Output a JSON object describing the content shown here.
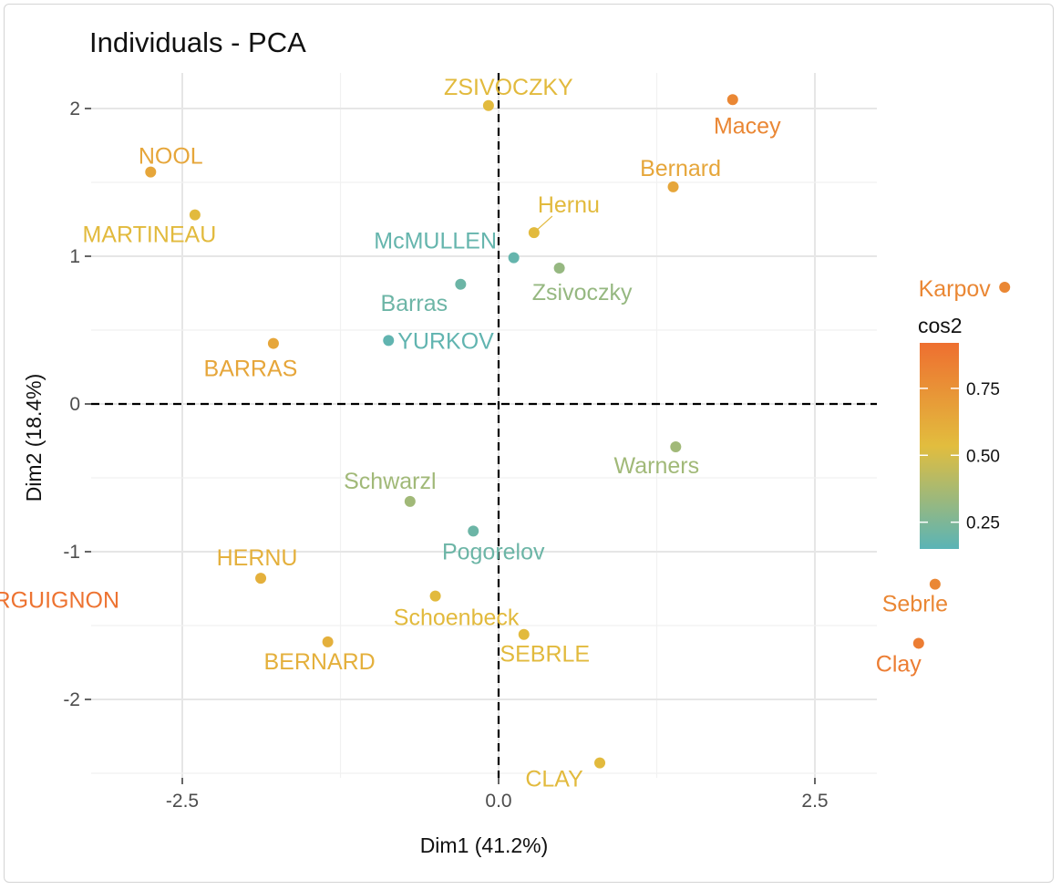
{
  "chart_data": {
    "type": "scatter",
    "title": "Individuals - PCA",
    "xlabel": "Dim1 (41.2%)",
    "ylabel": "Dim2 (18.4%)",
    "xlim": [
      -4.6,
      4.8
    ],
    "ylim": [
      -2.6,
      2.35
    ],
    "x_ticks": [
      -2.5,
      0.0,
      2.5
    ],
    "x_tick_labels": [
      "-2.5",
      "0.0",
      "2.5"
    ],
    "y_ticks": [
      -2,
      -1,
      0,
      1,
      2
    ],
    "y_tick_labels": [
      "-2",
      "-1",
      "0",
      "1",
      "2"
    ],
    "grid": true,
    "reference_lines": {
      "x": 0,
      "y": 0,
      "style": "dashed"
    },
    "color_scale": {
      "name": "cos2",
      "min": 0.15,
      "max": 0.92,
      "ticks": [
        0.25,
        0.5,
        0.75
      ],
      "tick_labels": [
        "0.25",
        "0.50",
        "0.75"
      ],
      "colors": [
        "#5ab4b6",
        "#e2bd3e",
        "#ee6f30"
      ],
      "legend_position": "right"
    },
    "points": [
      {
        "name": "ZSIVOCZKY",
        "x": -0.08,
        "y": 2.02,
        "cos2": 0.55
      },
      {
        "name": "Macey",
        "x": 1.85,
        "y": 2.06,
        "cos2": 0.8
      },
      {
        "name": "NOOL",
        "x": -2.75,
        "y": 1.57,
        "cos2": 0.65
      },
      {
        "name": "Bernard",
        "x": 1.38,
        "y": 1.47,
        "cos2": 0.65
      },
      {
        "name": "MARTINEAU",
        "x": -2.4,
        "y": 1.28,
        "cos2": 0.55
      },
      {
        "name": "Hernu",
        "x": 0.28,
        "y": 1.16,
        "cos2": 0.55
      },
      {
        "name": "McMULLEN",
        "x": 0.12,
        "y": 0.99,
        "cos2": 0.18
      },
      {
        "name": "Zsivoczky",
        "x": 0.48,
        "y": 0.92,
        "cos2": 0.32
      },
      {
        "name": "Karpov",
        "x": 4.0,
        "y": 0.79,
        "cos2": 0.8
      },
      {
        "name": "Barras",
        "x": -0.3,
        "y": 0.81,
        "cos2": 0.2
      },
      {
        "name": "YURKOV",
        "x": -0.87,
        "y": 0.43,
        "cos2": 0.17
      },
      {
        "name": "BARRAS",
        "x": -1.78,
        "y": 0.41,
        "cos2": 0.65
      },
      {
        "name": "Warners",
        "x": 1.4,
        "y": -0.29,
        "cos2": 0.35
      },
      {
        "name": "Schwarzl",
        "x": -0.7,
        "y": -0.66,
        "cos2": 0.35
      },
      {
        "name": "Pogorelov",
        "x": -0.2,
        "y": -0.86,
        "cos2": 0.2
      },
      {
        "name": "HERNU",
        "x": -1.88,
        "y": -1.18,
        "cos2": 0.6
      },
      {
        "name": "BOURGUIGNON",
        "x": -4.45,
        "y": -1.27,
        "cos2": 0.9
      },
      {
        "name": "Sebrle",
        "x": 3.45,
        "y": -1.22,
        "cos2": 0.8
      },
      {
        "name": "Schoenbeck",
        "x": -0.5,
        "y": -1.3,
        "cos2": 0.55
      },
      {
        "name": "SEBRLE",
        "x": 0.2,
        "y": -1.56,
        "cos2": 0.55
      },
      {
        "name": "BERNARD",
        "x": -1.35,
        "y": -1.61,
        "cos2": 0.6
      },
      {
        "name": "Clay",
        "x": 3.32,
        "y": -1.62,
        "cos2": 0.85
      },
      {
        "name": "CLAY",
        "x": 0.8,
        "y": -2.43,
        "cos2": 0.55
      }
    ]
  }
}
